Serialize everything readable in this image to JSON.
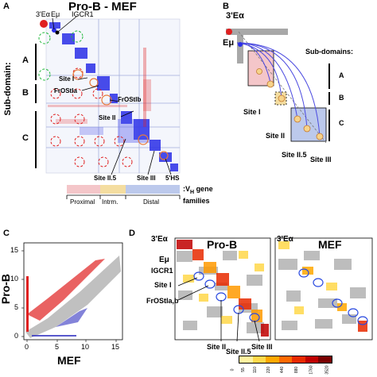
{
  "panel_a": {
    "letter": "A",
    "title": "Pro-B - MEF",
    "y_axis_label": "Sub-domain:",
    "subdomains": [
      "A",
      "B",
      "C"
    ],
    "elements": [
      "3'Eα",
      "Eμ",
      "IGCR1"
    ],
    "sites": [
      "Site I",
      "FrOStIa",
      "FrOStIb",
      "Site II",
      "Site II.5",
      "Site III",
      "5'HS"
    ],
    "legend": {
      "prefix": ":V",
      "subscript": "H",
      "suffix_line1": " gene",
      "suffix_line2": "families",
      "segments": [
        {
          "label": "Proximal",
          "color": "#f4c6c9"
        },
        {
          "label": "Intrm.",
          "color": "#f4dda0"
        },
        {
          "label": "Distal",
          "color": "#bcc9ec"
        }
      ]
    }
  },
  "panel_b": {
    "letter": "B",
    "elements": [
      "3'Eα",
      "Eμ"
    ],
    "subdomains_header": "Sub-domains:",
    "subdomains": [
      "A",
      "B",
      "C"
    ],
    "sites": [
      "Site I",
      "Site II",
      "Site II.5",
      "Site III"
    ]
  },
  "panel_c": {
    "letter": "C",
    "xlabel": "MEF",
    "ylabel": "Pro-B",
    "xticks": [
      "0",
      "5",
      "10",
      "15"
    ],
    "yticks": [
      "0",
      "5",
      "10",
      "15"
    ]
  },
  "panel_d": {
    "letter": "D",
    "left_title": "Pro-B",
    "right_title": "MEF",
    "left_elements": [
      "3'Eα",
      "Eμ",
      "IGCR1"
    ],
    "right_elements": [
      "3'Eα"
    ],
    "sites": [
      "Site I",
      "FrOStIa,b",
      "Site II",
      "Site II.5",
      "Site III"
    ],
    "colorbar_ticks": [
      "0",
      "55",
      "110",
      "220",
      "440",
      "880",
      "1760",
      "3520"
    ],
    "colorbar_colors": [
      "#fff3a0",
      "#ffd84a",
      "#ffa800",
      "#ff6a00",
      "#e82a00",
      "#c00000",
      "#7a0000"
    ]
  },
  "colors": {
    "contact_blue": "#2a2ee8",
    "contact_red": "#e02020",
    "contact_green": "#21b83c",
    "gray": "#a8a8a8"
  }
}
